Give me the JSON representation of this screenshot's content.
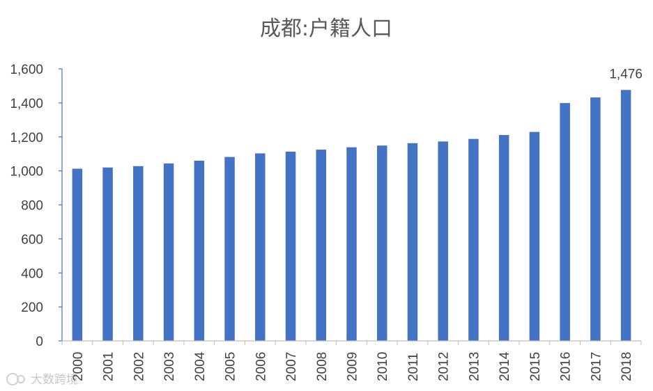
{
  "colors": {
    "bar": "#4472C4",
    "axis": "#4472C4",
    "tick_text": "#404040",
    "title_text": "#595959"
  },
  "watermark": {
    "text": "大数跨境"
  },
  "chart_data": {
    "type": "bar",
    "title": "成都:户籍人口",
    "xlabel": "",
    "ylabel": "",
    "categories": [
      "2000",
      "2001",
      "2002",
      "2003",
      "2004",
      "2005",
      "2006",
      "2007",
      "2008",
      "2009",
      "2010",
      "2011",
      "2012",
      "2013",
      "2014",
      "2015",
      "2016",
      "2017",
      "2018"
    ],
    "values": [
      1013,
      1020,
      1028,
      1044,
      1060,
      1082,
      1103,
      1113,
      1125,
      1139,
      1149,
      1163,
      1173,
      1188,
      1211,
      1229,
      1399,
      1432,
      1476
    ],
    "ylim": [
      0,
      1600
    ],
    "yticks": [
      "0",
      "200",
      "400",
      "600",
      "800",
      "1,000",
      "1,200",
      "1,400",
      "1,600"
    ],
    "data_labels": [
      {
        "category": "2018",
        "text": "1,476"
      }
    ],
    "grid": false,
    "legend": "none"
  }
}
